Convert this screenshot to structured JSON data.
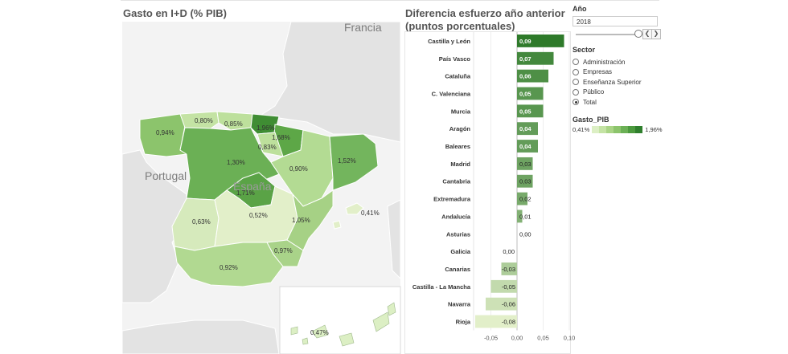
{
  "map": {
    "title": "Gasto en I+D (% PIB)",
    "country_labels": {
      "france": "Francia",
      "portugal": "Portugal",
      "spain": "España"
    },
    "region_values": {
      "galicia": "0,94%",
      "asturias": "0,80%",
      "cantabria": "0,85%",
      "pais_vasco": "1,96%",
      "navarra": "1,68%",
      "rioja": "0,83%",
      "castilla_leon": "1,30%",
      "madrid": "1,71%",
      "aragon": "0,90%",
      "cataluna": "1,52%",
      "extremadura": "0,63%",
      "castilla_mancha": "0,52%",
      "valenciana": "1,05%",
      "baleares": "0,41%",
      "murcia": "0,97%",
      "andalucia": "0,92%",
      "canarias": "0,47%"
    }
  },
  "chart_data": {
    "type": "bar",
    "orientation": "horizontal",
    "title": "Diferencia esfuerzo año anterior (puntos porcentuales)",
    "categories": [
      "Castilla y León",
      "País Vasco",
      "Cataluña",
      "C. Valenciana",
      "Murcia",
      "Aragón",
      "Baleares",
      "Madrid",
      "Cantabria",
      "Extremadura",
      "Andalucía",
      "Asturias",
      "Galicia",
      "Canarias",
      "Castilla - La Mancha",
      "Navarra",
      "Rioja"
    ],
    "values": [
      0.09,
      0.07,
      0.06,
      0.05,
      0.05,
      0.04,
      0.04,
      0.03,
      0.03,
      0.02,
      0.01,
      0.0,
      0.0,
      -0.03,
      -0.05,
      -0.06,
      -0.08
    ],
    "value_labels": [
      "0,09",
      "0,07",
      "0,06",
      "0,05",
      "0,05",
      "0,04",
      "0,04",
      "0,03",
      "0,03",
      "0,02",
      "0,01",
      "0,00",
      "0,00",
      "-0,03",
      "-0,05",
      "-0,06",
      "-0,08"
    ],
    "xlim": [
      -0.08,
      0.1
    ],
    "x_ticks": [
      -0.05,
      0.0,
      0.05,
      0.1
    ],
    "x_tick_labels": [
      "-0,05",
      "0,00",
      "0,05",
      "0,10"
    ],
    "grid": true
  },
  "filters": {
    "year_title": "Año",
    "year_value": "2018",
    "sector_title": "Sector",
    "sector_options": [
      "Administración",
      "Empresas",
      "Enseñanza Superior",
      "Público",
      "Total"
    ],
    "sector_selected": "Total",
    "legend_title": "Gasto_PIB",
    "legend_min": "0,41%",
    "legend_max": "1,96%",
    "legend_colors": [
      "#dcefc4",
      "#c4e3a4",
      "#a9d485",
      "#8cc46c",
      "#6bb055",
      "#4c9a3e",
      "#2f7f2d"
    ]
  },
  "colors": {
    "low": "#e2efc9",
    "high": "#2e7a2a",
    "background_land": "#e6e6e6"
  }
}
